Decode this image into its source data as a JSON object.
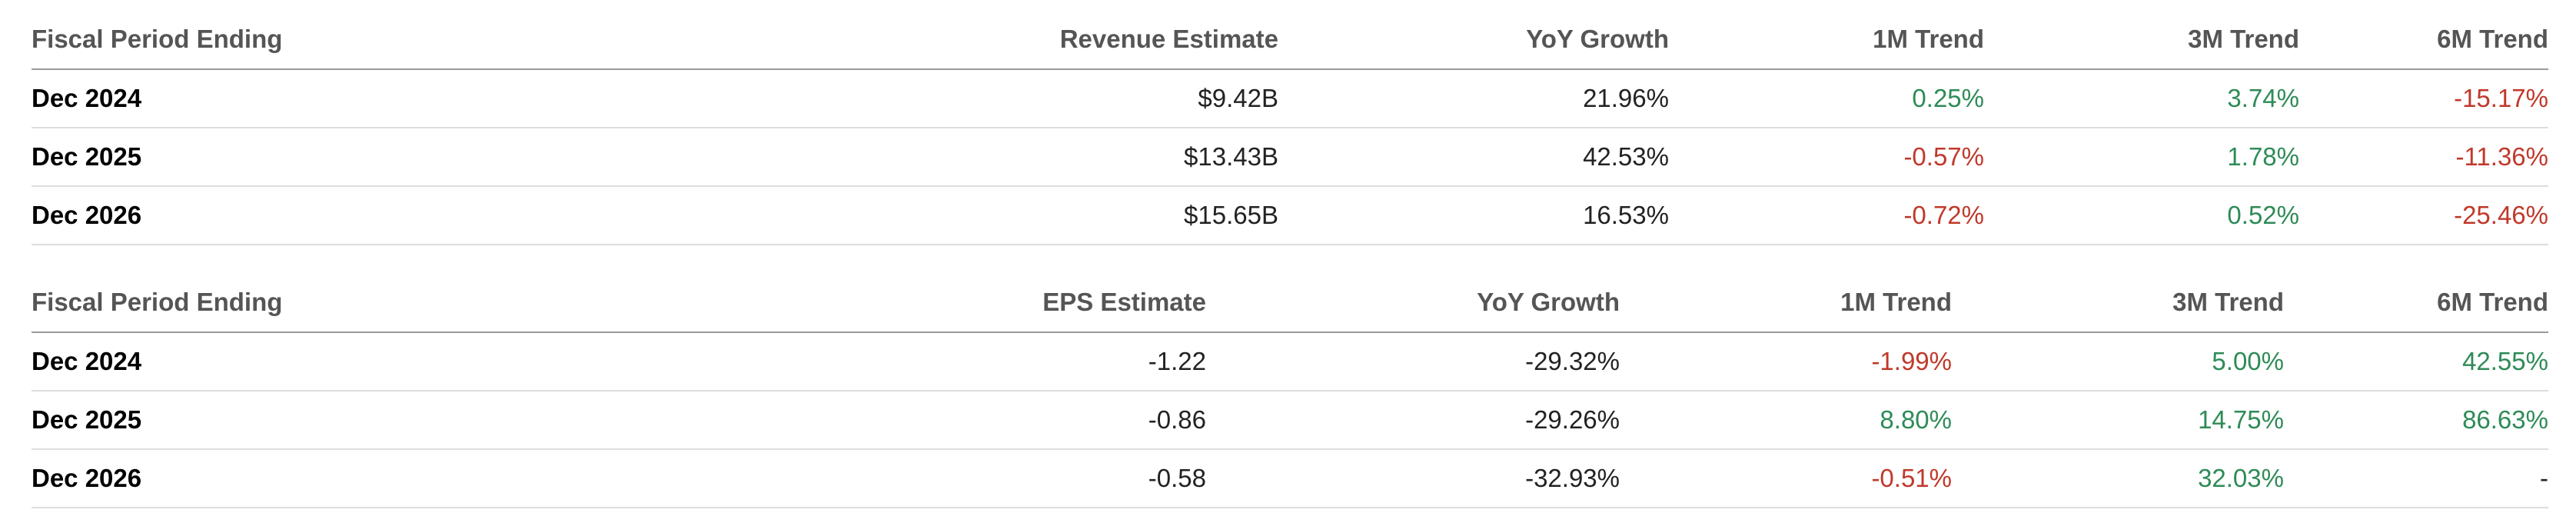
{
  "revenue_table": {
    "headers": [
      "Fiscal Period Ending",
      "Revenue Estimate",
      "YoY Growth",
      "1M Trend",
      "3M Trend",
      "6M Trend"
    ],
    "rows": [
      {
        "period": "Dec 2024",
        "estimate": "$9.42B",
        "yoy": "21.96%",
        "m1": "0.25%",
        "m3": "3.74%",
        "m6": "-15.17%"
      },
      {
        "period": "Dec 2025",
        "estimate": "$13.43B",
        "yoy": "42.53%",
        "m1": "-0.57%",
        "m3": "1.78%",
        "m6": "-11.36%"
      },
      {
        "period": "Dec 2026",
        "estimate": "$15.65B",
        "yoy": "16.53%",
        "m1": "-0.72%",
        "m3": "0.52%",
        "m6": "-25.46%"
      }
    ]
  },
  "eps_table": {
    "headers": [
      "Fiscal Period Ending",
      "EPS Estimate",
      "YoY Growth",
      "1M Trend",
      "3M Trend",
      "6M Trend"
    ],
    "rows": [
      {
        "period": "Dec 2024",
        "estimate": "-1.22",
        "yoy": "-29.32%",
        "m1": "-1.99%",
        "m3": "5.00%",
        "m6": "42.55%"
      },
      {
        "period": "Dec 2025",
        "estimate": "-0.86",
        "yoy": "-29.26%",
        "m1": "8.80%",
        "m3": "14.75%",
        "m6": "86.63%"
      },
      {
        "period": "Dec 2026",
        "estimate": "-0.58",
        "yoy": "-32.93%",
        "m1": "-0.51%",
        "m3": "32.03%",
        "m6": "-"
      }
    ]
  },
  "colors": {
    "positive": "#2e8b57",
    "negative": "#c0392b",
    "header_text": "#555555"
  }
}
